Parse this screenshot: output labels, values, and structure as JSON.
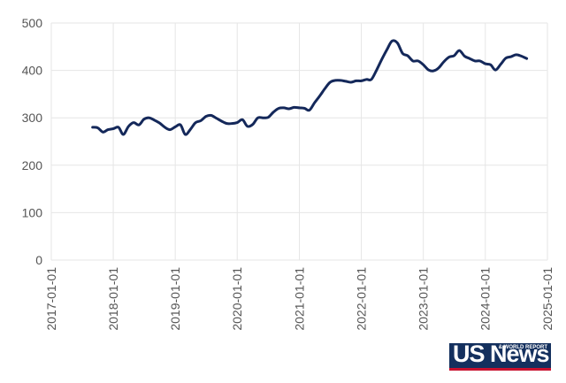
{
  "chart_data": {
    "type": "line",
    "title": "",
    "xlabel": "",
    "ylabel": "",
    "xlim": [
      "2017-01-01",
      "2025-01-01"
    ],
    "ylim": [
      0,
      500
    ],
    "grid": true,
    "x_ticks": [
      "2017-01-01",
      "2018-01-01",
      "2019-01-01",
      "2020-01-01",
      "2021-01-01",
      "2022-01-01",
      "2023-01-01",
      "2024-01-01",
      "2025-01-01"
    ],
    "y_ticks": [
      0,
      100,
      200,
      300,
      400,
      500
    ],
    "colors": {
      "line": "#14285a",
      "grid": "#e6e6e6",
      "tick_text": "#555555"
    },
    "series": [
      {
        "points": [
          [
            "2017-09-01",
            280
          ],
          [
            "2017-10-01",
            279
          ],
          [
            "2017-11-01",
            270
          ],
          [
            "2017-12-01",
            275
          ],
          [
            "2018-01-01",
            277
          ],
          [
            "2018-02-01",
            280
          ],
          [
            "2018-03-01",
            265
          ],
          [
            "2018-04-01",
            282
          ],
          [
            "2018-05-01",
            290
          ],
          [
            "2018-06-01",
            285
          ],
          [
            "2018-07-01",
            297
          ],
          [
            "2018-08-01",
            300
          ],
          [
            "2018-09-01",
            295
          ],
          [
            "2018-10-01",
            289
          ],
          [
            "2018-11-01",
            280
          ],
          [
            "2018-12-01",
            275
          ],
          [
            "2019-01-01",
            281
          ],
          [
            "2019-02-01",
            285
          ],
          [
            "2019-03-01",
            265
          ],
          [
            "2019-04-01",
            276
          ],
          [
            "2019-05-01",
            290
          ],
          [
            "2019-06-01",
            294
          ],
          [
            "2019-07-01",
            303
          ],
          [
            "2019-08-01",
            305
          ],
          [
            "2019-09-01",
            299
          ],
          [
            "2019-10-01",
            293
          ],
          [
            "2019-11-01",
            288
          ],
          [
            "2019-12-01",
            288
          ],
          [
            "2020-01-01",
            290
          ],
          [
            "2020-02-01",
            296
          ],
          [
            "2020-03-01",
            282
          ],
          [
            "2020-04-01",
            286
          ],
          [
            "2020-05-01",
            300
          ],
          [
            "2020-06-01",
            300
          ],
          [
            "2020-07-01",
            301
          ],
          [
            "2020-08-01",
            312
          ],
          [
            "2020-09-01",
            320
          ],
          [
            "2020-10-01",
            321
          ],
          [
            "2020-11-01",
            319
          ],
          [
            "2020-12-01",
            322
          ],
          [
            "2021-01-01",
            321
          ],
          [
            "2021-02-01",
            320
          ],
          [
            "2021-03-01",
            316
          ],
          [
            "2021-04-01",
            332
          ],
          [
            "2021-05-01",
            346
          ],
          [
            "2021-06-01",
            362
          ],
          [
            "2021-07-01",
            375
          ],
          [
            "2021-08-01",
            379
          ],
          [
            "2021-09-01",
            379
          ],
          [
            "2021-10-01",
            377
          ],
          [
            "2021-11-01",
            375
          ],
          [
            "2021-12-01",
            378
          ],
          [
            "2022-01-01",
            378
          ],
          [
            "2022-02-01",
            381
          ],
          [
            "2022-03-01",
            381
          ],
          [
            "2022-04-01",
            401
          ],
          [
            "2022-05-01",
            423
          ],
          [
            "2022-06-01",
            444
          ],
          [
            "2022-07-01",
            462
          ],
          [
            "2022-08-01",
            458
          ],
          [
            "2022-09-01",
            436
          ],
          [
            "2022-10-01",
            431
          ],
          [
            "2022-11-01",
            420
          ],
          [
            "2022-12-01",
            420
          ],
          [
            "2023-01-01",
            412
          ],
          [
            "2023-02-01",
            401
          ],
          [
            "2023-03-01",
            399
          ],
          [
            "2023-04-01",
            405
          ],
          [
            "2023-05-01",
            418
          ],
          [
            "2023-06-01",
            428
          ],
          [
            "2023-07-01",
            431
          ],
          [
            "2023-08-01",
            442
          ],
          [
            "2023-09-01",
            430
          ],
          [
            "2023-10-01",
            425
          ],
          [
            "2023-11-01",
            420
          ],
          [
            "2023-12-01",
            420
          ],
          [
            "2024-01-01",
            414
          ],
          [
            "2024-02-01",
            412
          ],
          [
            "2024-03-01",
            401
          ],
          [
            "2024-04-01",
            413
          ],
          [
            "2024-05-01",
            426
          ],
          [
            "2024-06-01",
            429
          ],
          [
            "2024-07-01",
            433
          ],
          [
            "2024-08-01",
            430
          ],
          [
            "2024-09-01",
            425
          ]
        ]
      }
    ]
  },
  "logo": {
    "text": "US News",
    "subtext": "& WORLD REPORT"
  }
}
